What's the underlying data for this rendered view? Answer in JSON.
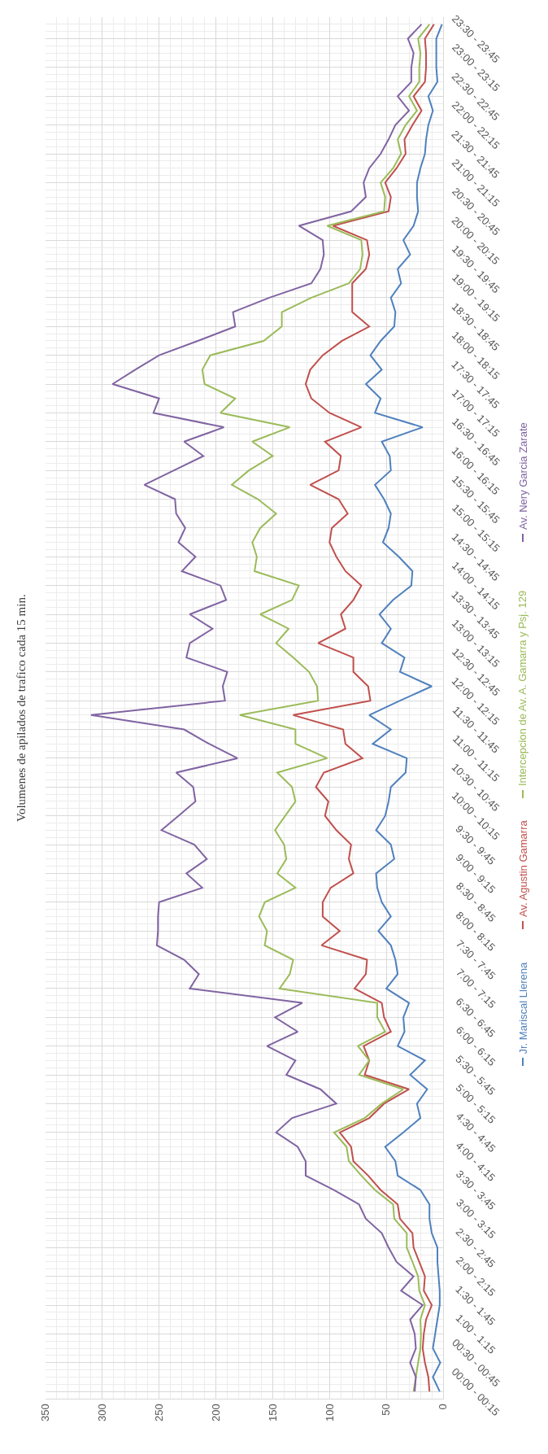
{
  "chart_data": {
    "type": "line",
    "orientation": "horizontal",
    "title": "Volumenes de apilados de trafico cada 15 min.",
    "categories": [
      null,
      "23:30 - 23:45",
      null,
      "23:00 - 23:15",
      null,
      "22:30 - 22:45",
      null,
      "22:00 - 22:15",
      null,
      "21:30 - 21:45",
      null,
      "21:00 - 21:15",
      null,
      "20:30 - 20:45",
      null,
      "20:00 - 20:15",
      null,
      "19:30 - 19:45",
      null,
      "19:00 - 19:15",
      null,
      "18:30 - 18:45",
      null,
      "18:00 - 18:15",
      null,
      "17:30 - 17:45",
      null,
      "17:00 - 17:15",
      null,
      "16:30 - 16:45",
      null,
      "16:00 - 16:15",
      null,
      "15:30 - 15:45",
      null,
      "15:00 - 15:15",
      null,
      "14:30 - 14:45",
      null,
      "14:00 - 14:15",
      null,
      "13:30 - 13:45",
      null,
      "13:00 - 13:15",
      null,
      "12:30 - 12:45",
      null,
      "12:00 - 12:15",
      null,
      "11:30 - 11:45",
      null,
      "11:00 - 11:15",
      null,
      "10:30 - 10:45",
      null,
      "10:00 - 10:15",
      null,
      "9:30 - 9:45",
      null,
      "9:00 - 9:15",
      null,
      "8:30 - 8:45",
      null,
      "8:00 - 8:15",
      null,
      "7:30 - 7:45",
      null,
      "7:00 - 7:15",
      null,
      "6:30 - 6:45",
      null,
      "6:00 - 6:15",
      null,
      "5:30 - 5:45",
      null,
      "5:00 - 5:15",
      null,
      "4:30 - 4:45",
      null,
      "4:00 - 4:15",
      null,
      "3:30 - 3:45",
      null,
      "3:00 - 3:15",
      null,
      "2:30 - 2:45",
      null,
      "2:00 - 2:15",
      null,
      "1:30 - 1:45",
      null,
      "1:00 - 1:15",
      null,
      "00:30 - 00:45",
      null,
      "00:00 - 00:15"
    ],
    "series": [
      {
        "name": "Jr. Mariscal Llerena",
        "color": "#4f81bd",
        "values": [
          1,
          6,
          6,
          6,
          5,
          13,
          9,
          13,
          15,
          16,
          20,
          23,
          23,
          22,
          26,
          35,
          29,
          40,
          37,
          46,
          42,
          43,
          55,
          64,
          54,
          68,
          55,
          60,
          18,
          54,
          47,
          46,
          60,
          52,
          46,
          48,
          53,
          39,
          27,
          28,
          44,
          56,
          46,
          54,
          34,
          38,
          10,
          38,
          65,
          46,
          62,
          32,
          33,
          46,
          48,
          51,
          59,
          46,
          43,
          59,
          58,
          54,
          46,
          57,
          46,
          42,
          40,
          50,
          30,
          35,
          34,
          40,
          16,
          29,
          14,
          23,
          20,
          35,
          51,
          42,
          40,
          20,
          12,
          12,
          10,
          5,
          5,
          4,
          3,
          3,
          5,
          7,
          9,
          2.5,
          9,
          3
        ]
      },
      {
        "name": "Av. Agustin Gamarra",
        "color": "#c0504d",
        "values": [
          8,
          16,
          15,
          15,
          16,
          26,
          19,
          27,
          34,
          33,
          41,
          51,
          46,
          48,
          97,
          67,
          65,
          68,
          80,
          80,
          80,
          65,
          89,
          106,
          117,
          121,
          116,
          100,
          72,
          104,
          90,
          92,
          117,
          92,
          84,
          98,
          100,
          94,
          86,
          72,
          79,
          90,
          86,
          110,
          79,
          79,
          66,
          64,
          132,
          88,
          86,
          71,
          105,
          112,
          101,
          104,
          94,
          81,
          83,
          79,
          99,
          106,
          106,
          91,
          107,
          67,
          68,
          78,
          54,
          52,
          46,
          70,
          65,
          69,
          30,
          52,
          65,
          91,
          81,
          79,
          66,
          55,
          40,
          38,
          27,
          26,
          21,
          16,
          17,
          10,
          15,
          17,
          18,
          16,
          13,
          12
        ]
      },
      {
        "name": "Intercepcion de Av. A. Gamarra y Psj. 129",
        "color": "#9bbb59",
        "values": [
          12,
          22,
          20,
          21,
          21,
          30,
          23,
          33,
          40,
          37,
          44,
          55,
          51,
          52,
          102,
          72,
          71,
          73,
          83,
          116,
          142,
          142,
          158,
          205,
          212,
          210,
          183,
          196,
          135,
          168,
          150,
          171,
          186,
          163,
          147,
          161,
          168,
          164,
          166,
          127,
          133,
          161,
          136,
          147,
          132,
          118,
          111,
          110,
          179,
          130,
          130,
          102,
          146,
          133,
          130,
          139,
          148,
          140,
          138,
          146,
          130,
          157,
          162,
          155,
          157,
          132,
          135,
          144,
          58,
          58,
          51,
          75,
          65,
          74,
          35,
          54,
          69,
          96,
          85,
          83,
          72,
          60,
          44,
          43,
          32,
          32,
          27,
          22,
          21,
          16,
          20,
          19.5,
          20,
          22,
          24,
          26
        ]
      },
      {
        "name": "Av. Nery Garcia Zarate",
        "color": "#8064a2",
        "values": [
          19,
          31,
          26,
          28,
          28,
          40,
          30,
          42,
          48,
          55,
          65,
          70,
          68,
          81,
          127,
          106,
          105,
          108,
          116,
          153,
          185,
          183,
          216,
          250,
          271,
          291,
          250,
          255,
          193,
          228,
          211,
          237,
          263,
          236,
          235,
          227,
          233,
          218,
          230,
          196,
          191,
          223,
          203,
          223,
          226,
          190,
          194,
          192,
          310,
          228,
          206,
          181,
          235,
          220,
          218,
          233,
          248,
          219,
          208,
          226,
          212,
          250,
          251,
          251,
          252,
          228,
          215,
          223,
          124,
          148,
          128,
          155,
          130,
          138,
          108,
          94,
          133,
          147,
          128,
          121,
          121,
          96,
          74,
          68,
          54,
          48,
          41,
          26,
          37,
          18,
          29,
          25,
          24,
          29,
          24,
          25
        ]
      }
    ],
    "xlim": [
      350,
      0
    ],
    "xticks": [
      0,
      50,
      100,
      150,
      200,
      250,
      300,
      350
    ],
    "grid": true,
    "legend": "right",
    "line_style": "solid",
    "marker": "none"
  }
}
